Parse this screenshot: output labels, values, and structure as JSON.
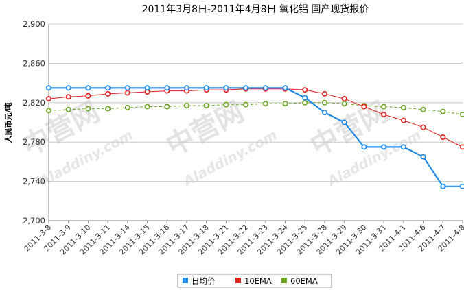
{
  "chart_data": {
    "type": "line",
    "title": "2011年3月8日-2011年4月8日 氧化铝 国产现货报价",
    "ylabel": "人民币元/吨",
    "xlabel": "",
    "ylim": [
      2700,
      2900
    ],
    "yticks": [
      "2,700",
      "2,740",
      "2,780",
      "2,820",
      "2,860",
      "2,900"
    ],
    "grid": true,
    "legend_position": "bottom-center",
    "categories": [
      "2011-3-8",
      "2011-3-9",
      "2011-3-10",
      "2011-3-11",
      "2011-3-14",
      "2011-3-15",
      "2011-3-16",
      "2011-3-17",
      "2011-3-18",
      "2011-3-21",
      "2011-3-22",
      "2011-3-23",
      "2011-3-24",
      "2011-3-25",
      "2011-3-28",
      "2011-3-29",
      "2011-3-30",
      "2011-3-31",
      "2011-4-1",
      "2011-4-6",
      "2011-4-7",
      "2011-4-8"
    ],
    "series": [
      {
        "name": "日均价",
        "color": "#1e88e5",
        "values": [
          2835,
          2835,
          2835,
          2835,
          2835,
          2835,
          2835,
          2835,
          2835,
          2835,
          2835,
          2835,
          2835,
          2825,
          2810,
          2800,
          2775,
          2775,
          2775,
          2765,
          2735,
          2735
        ]
      },
      {
        "name": "10EMA",
        "color": "#e01e1e",
        "values": [
          2824,
          2826,
          2827,
          2829,
          2830,
          2831,
          2832,
          2832,
          2833,
          2833,
          2834,
          2834,
          2834,
          2833,
          2829,
          2824,
          2816,
          2808,
          2802,
          2795,
          2785,
          2775
        ]
      },
      {
        "name": "60EMA",
        "color": "#6aa121",
        "values": [
          2812,
          2813,
          2814,
          2814,
          2815,
          2816,
          2816,
          2817,
          2817,
          2818,
          2818,
          2819,
          2819,
          2820,
          2820,
          2819,
          2817,
          2816,
          2815,
          2813,
          2811,
          2808
        ]
      }
    ]
  },
  "watermark": {
    "brand": "中营网",
    "site": "Aladdiny.com"
  }
}
